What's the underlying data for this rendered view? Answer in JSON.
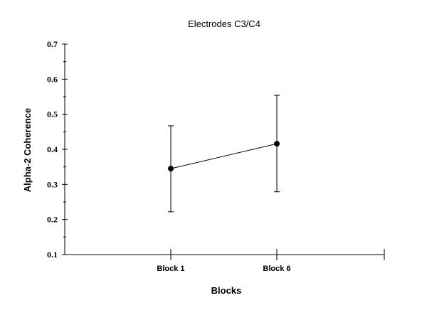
{
  "chart_data": {
    "type": "line",
    "title": "Electrodes C3/C4",
    "xlabel": "Blocks",
    "ylabel": "Alpha-2 Coherence",
    "categories": [
      "Block 1",
      "Block 6"
    ],
    "series": [
      {
        "values": [
          0.345,
          0.416
        ],
        "error_low": [
          0.222,
          0.279
        ],
        "error_high": [
          0.467,
          0.554
        ]
      }
    ],
    "ylim": [
      0.1,
      0.7
    ],
    "yticks": [
      "0.1",
      "0.2",
      "0.3",
      "0.4",
      "0.5",
      "0.6",
      "0.7"
    ],
    "grid": false,
    "legend": "none"
  }
}
